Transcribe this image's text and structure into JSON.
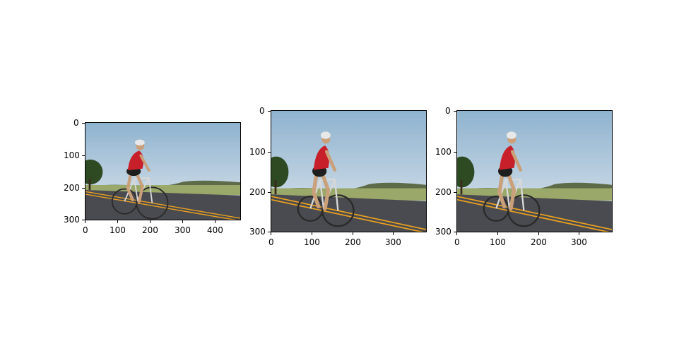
{
  "panels": [
    {
      "id": "panel-1",
      "image": {
        "width": 480,
        "height": 300
      },
      "x_ticks": [
        "0",
        "100",
        "200",
        "300",
        "400"
      ],
      "y_ticks": [
        "0",
        "100",
        "200",
        "300"
      ]
    },
    {
      "id": "panel-2",
      "image": {
        "width": 380,
        "height": 300
      },
      "x_ticks": [
        "0",
        "100",
        "200",
        "300"
      ],
      "y_ticks": [
        "0",
        "100",
        "200",
        "300"
      ]
    },
    {
      "id": "panel-3",
      "image": {
        "width": 380,
        "height": 300
      },
      "x_ticks": [
        "0",
        "100",
        "200",
        "300"
      ],
      "y_ticks": [
        "0",
        "100",
        "200",
        "300"
      ]
    }
  ],
  "scene": {
    "subject": "cyclist-on-road",
    "colors": {
      "sky_top": "#8fb3cf",
      "sky_bottom": "#dfe7ee",
      "grass": "#9aa86a",
      "road": "#4a4b50",
      "road_line": "#e8a020",
      "jersey": "#c8202a",
      "tree": "#2e4a22"
    }
  }
}
